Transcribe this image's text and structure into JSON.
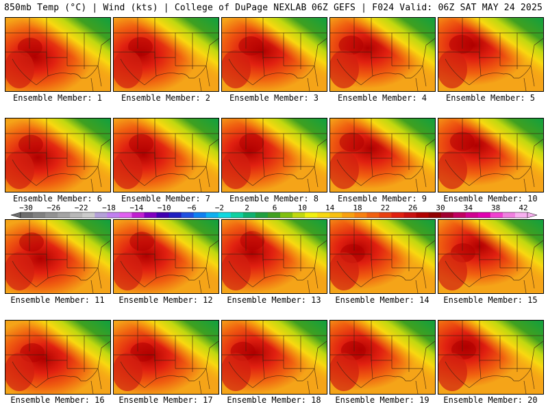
{
  "header": {
    "left": "850mb Temp (°C) | Wind (kts) | College of DuPage NEXLAB",
    "right": "06Z GEFS | F024 Valid: 06Z SAT MAY 24 2025"
  },
  "members": [
    "Ensemble Member: 1",
    "Ensemble Member: 2",
    "Ensemble Member: 3",
    "Ensemble Member: 4",
    "Ensemble Member: 5",
    "Ensemble Member: 6",
    "Ensemble Member: 7",
    "Ensemble Member: 8",
    "Ensemble Member: 9",
    "Ensemble Member: 10",
    "Ensemble Member: 11",
    "Ensemble Member: 12",
    "Ensemble Member: 13",
    "Ensemble Member: 14",
    "Ensemble Member: 15",
    "Ensemble Member: 16",
    "Ensemble Member: 17",
    "Ensemble Member: 18",
    "Ensemble Member: 19",
    "Ensemble Member: 20"
  ],
  "colorbar": {
    "labels": [
      "−30",
      "−26",
      "−22",
      "−18",
      "−14",
      "−10",
      "−6",
      "−2",
      "2",
      "6",
      "10",
      "14",
      "18",
      "22",
      "26",
      "30",
      "34",
      "38",
      "42"
    ],
    "colors": [
      "#6e6e6e",
      "#808080",
      "#929292",
      "#a4a4a4",
      "#b8b8b8",
      "#cbcbcb",
      "#b4a0d8",
      "#c080f0",
      "#e060f0",
      "#c020d0",
      "#8000c0",
      "#4000b0",
      "#2020c0",
      "#2050e0",
      "#1080f0",
      "#10b0f0",
      "#10d8e0",
      "#10d0a0",
      "#10b070",
      "#20a040",
      "#40a020",
      "#80c010",
      "#c0d810",
      "#f0f010",
      "#f8d810",
      "#f8c010",
      "#f8a010",
      "#f88010",
      "#f06010",
      "#e84010",
      "#e02010",
      "#c81010",
      "#b00000",
      "#900000",
      "#a00030",
      "#c00060",
      "#d00090",
      "#e000b0",
      "#f040d0",
      "#f080e0",
      "#f8b0f0"
    ]
  }
}
